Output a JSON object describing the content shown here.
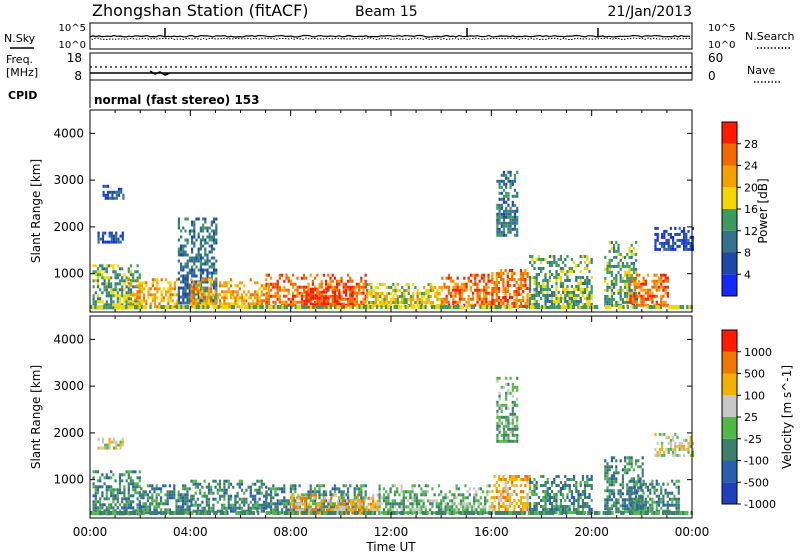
{
  "header": {
    "station": "Zhongshan Station (fitACF)",
    "beam": "Beam 15",
    "date": "21/Jan/2013"
  },
  "noise_panel": {
    "left_label": "N.Sky",
    "right_label": "N.Search",
    "left_ticks": [
      "10^5",
      "10^0"
    ],
    "right_ticks": [
      "10^5",
      "10^0"
    ]
  },
  "freq_panel": {
    "left_label_line1": "Freq.",
    "left_label_line2": "[MHz]",
    "right_label": "Nave",
    "left_ticks": [
      "18",
      "8"
    ],
    "right_ticks": [
      "60",
      "0"
    ]
  },
  "cpid_panel": {
    "label": "CPID",
    "text": "normal (fast stereo) 153"
  },
  "axes": {
    "ylabel": "Slant Range [km]",
    "xlabel": "Time UT",
    "y_ticks": [
      "1000",
      "2000",
      "3000",
      "4000"
    ],
    "x_ticks": [
      "00:00",
      "04:00",
      "08:00",
      "12:00",
      "16:00",
      "20:00",
      "00:00"
    ]
  },
  "chart_data": [
    {
      "type": "heatmap",
      "name": "power",
      "x_range_hours": [
        0,
        24
      ],
      "ylim_km": [
        180,
        4500
      ],
      "colorbar": {
        "label": "Power [dB]",
        "tick_labels": [
          "4",
          "8",
          "12",
          "16",
          "20",
          "24",
          "28"
        ],
        "range": [
          0,
          30
        ],
        "colors": [
          "#1428ff",
          "#1f47a8",
          "#34718e",
          "#3c9a5e",
          "#f2d800",
          "#f5a000",
          "#f06a00",
          "#ff1a00"
        ]
      },
      "echo_regions": [
        {
          "t": [
            0.3,
            1.3
          ],
          "r": [
            1700,
            1900
          ],
          "level": 1
        },
        {
          "t": [
            0.5,
            1.3
          ],
          "r": [
            2600,
            2900
          ],
          "level": 1
        },
        {
          "t": [
            0.1,
            2.0
          ],
          "r": [
            300,
            1200
          ],
          "level": 3
        },
        {
          "t": [
            1.5,
            3.5
          ],
          "r": [
            300,
            900
          ],
          "level": 5
        },
        {
          "t": [
            3.5,
            5.0
          ],
          "r": [
            400,
            2200
          ],
          "level": 2
        },
        {
          "t": [
            4.0,
            7.0
          ],
          "r": [
            300,
            900
          ],
          "level": 5
        },
        {
          "t": [
            7.0,
            11.0
          ],
          "r": [
            300,
            1000
          ],
          "level": 6
        },
        {
          "t": [
            8.5,
            10.5
          ],
          "r": [
            300,
            700
          ],
          "level": 7
        },
        {
          "t": [
            11.0,
            14.0
          ],
          "r": [
            300,
            800
          ],
          "level": 4
        },
        {
          "t": [
            14.0,
            16.0
          ],
          "r": [
            300,
            1000
          ],
          "level": 6
        },
        {
          "t": [
            16.2,
            17.0
          ],
          "r": [
            1800,
            3200
          ],
          "level": 2
        },
        {
          "t": [
            16.0,
            17.5
          ],
          "r": [
            300,
            1100
          ],
          "level": 6
        },
        {
          "t": [
            17.5,
            20.0
          ],
          "r": [
            300,
            1400
          ],
          "level": 3
        },
        {
          "t": [
            20.5,
            21.8
          ],
          "r": [
            300,
            1700
          ],
          "level": 3
        },
        {
          "t": [
            21.5,
            23.0
          ],
          "r": [
            300,
            1000
          ],
          "level": 6
        },
        {
          "t": [
            22.5,
            24.0
          ],
          "r": [
            1500,
            2000
          ],
          "level": 1
        }
      ]
    },
    {
      "type": "heatmap",
      "name": "velocity",
      "x_range_hours": [
        0,
        24
      ],
      "ylim_km": [
        180,
        4500
      ],
      "colorbar": {
        "label": "Velocity [m s^-1]",
        "tick_labels": [
          "1000",
          "500",
          "100",
          "25",
          "-25",
          "-100",
          "-500",
          "-1000"
        ],
        "range": [
          -1000,
          1000
        ],
        "colors": [
          "#1f3fbf",
          "#2a5fae",
          "#3d7f6a",
          "#50b848",
          "#c8c8c8",
          "#f5b000",
          "#f07800",
          "#ff1a00"
        ]
      },
      "echo_regions": [
        {
          "t": [
            0.3,
            1.3
          ],
          "r": [
            1700,
            1900
          ],
          "level": 4
        },
        {
          "t": [
            0.1,
            2.0
          ],
          "r": [
            300,
            1200
          ],
          "level": 2
        },
        {
          "t": [
            2.0,
            4.0
          ],
          "r": [
            300,
            900
          ],
          "level": 2
        },
        {
          "t": [
            4.0,
            7.0
          ],
          "r": [
            300,
            1000
          ],
          "level": 2
        },
        {
          "t": [
            7.0,
            11.0
          ],
          "r": [
            300,
            900
          ],
          "level": 2
        },
        {
          "t": [
            8.0,
            11.5
          ],
          "r": [
            300,
            700
          ],
          "level": 5
        },
        {
          "t": [
            11.5,
            16.0
          ],
          "r": [
            300,
            900
          ],
          "level": 3
        },
        {
          "t": [
            16.2,
            17.0
          ],
          "r": [
            1800,
            3200
          ],
          "level": 3
        },
        {
          "t": [
            16.0,
            17.5
          ],
          "r": [
            300,
            1100
          ],
          "level": 5
        },
        {
          "t": [
            17.5,
            20.0
          ],
          "r": [
            300,
            1100
          ],
          "level": 2
        },
        {
          "t": [
            20.5,
            22.0
          ],
          "r": [
            300,
            1500
          ],
          "level": 2
        },
        {
          "t": [
            21.5,
            23.5
          ],
          "r": [
            300,
            1000
          ],
          "level": 2
        },
        {
          "t": [
            22.5,
            24.0
          ],
          "r": [
            1500,
            2000
          ],
          "level": 4
        }
      ]
    }
  ]
}
